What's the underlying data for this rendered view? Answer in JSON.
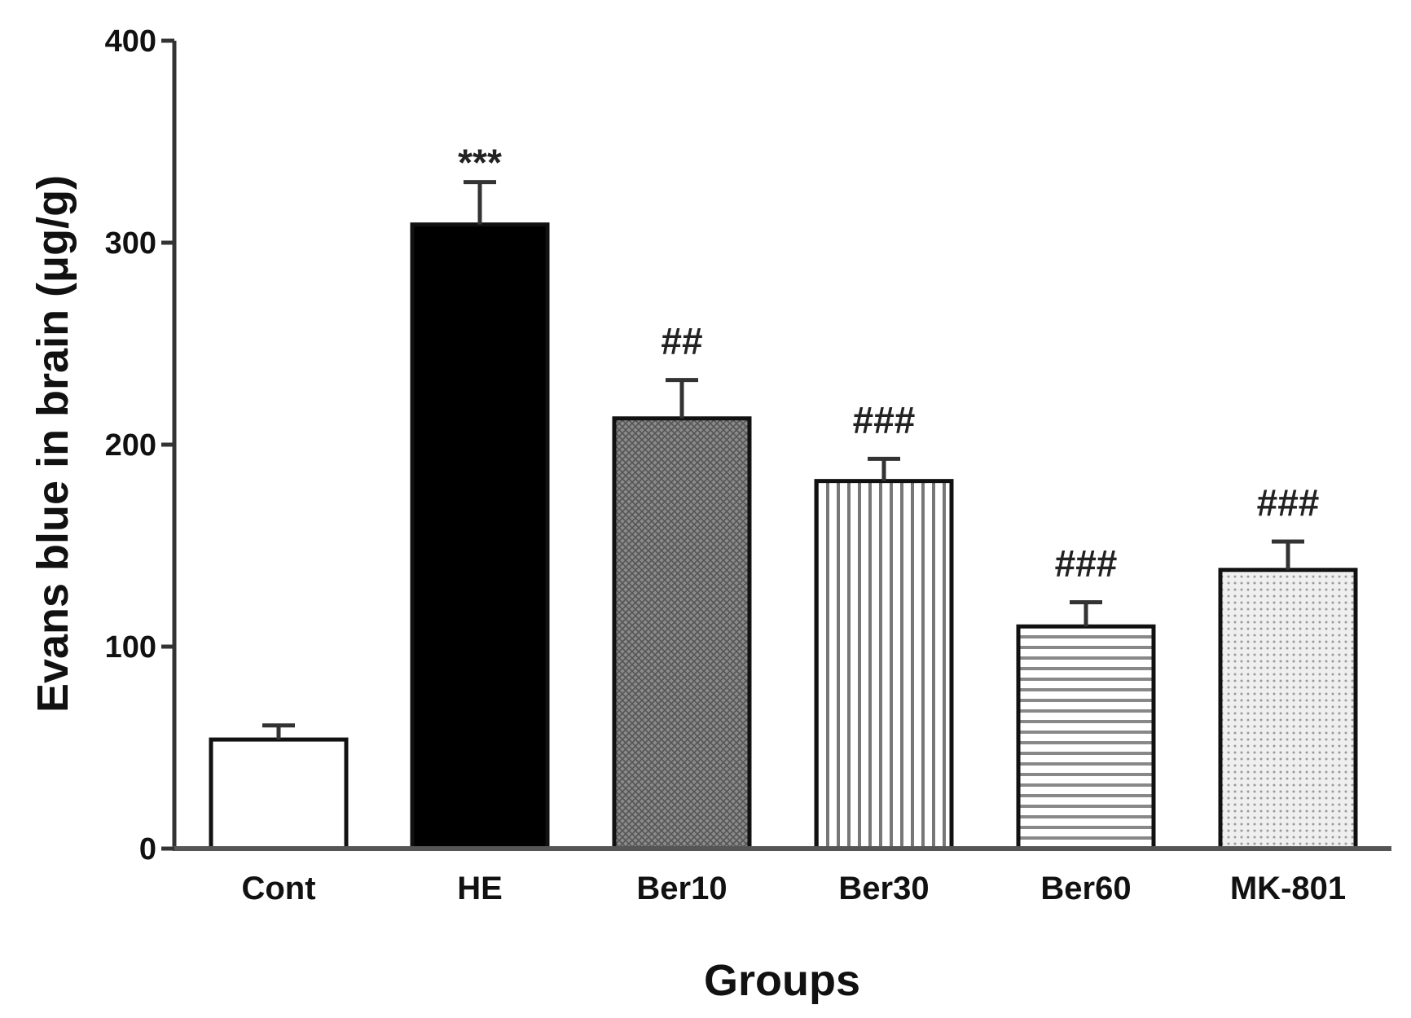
{
  "chart_data": {
    "type": "bar",
    "title": "",
    "xlabel": "Groups",
    "ylabel": "Evans blue in brain (μg/g)",
    "ylim": [
      0,
      400
    ],
    "yticks": [
      0,
      100,
      200,
      300,
      400
    ],
    "ytick_labels": [
      "0",
      "100",
      "200",
      "300",
      "400"
    ],
    "categories": [
      "Cont",
      "HE",
      "Ber10",
      "Ber30",
      "Ber60",
      "MK-801"
    ],
    "values": [
      54,
      309,
      213,
      182,
      110,
      138
    ],
    "errors": [
      7,
      21,
      19,
      11,
      12,
      14
    ],
    "annotations": [
      "",
      "***",
      "##",
      "###",
      "###",
      "###"
    ],
    "fills": [
      "white",
      "black",
      "crosshatch",
      "vertical-lines",
      "horizontal-lines",
      "dots"
    ],
    "grid": false,
    "legend": "none"
  }
}
